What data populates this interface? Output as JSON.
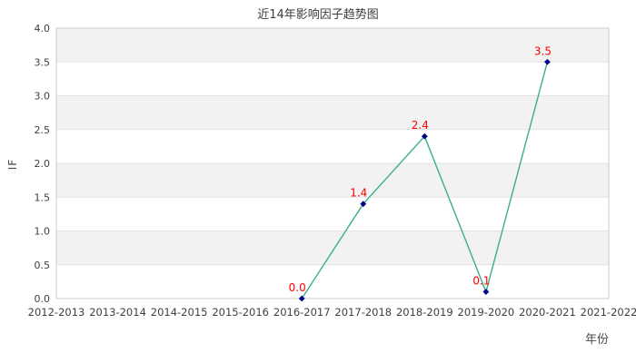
{
  "chart_data": {
    "type": "line",
    "title": "近14年影响因子趋势图",
    "xlabel": "年份",
    "ylabel": "IF",
    "categories": [
      "2012-2013",
      "2013-2014",
      "2014-2015",
      "2015-2016",
      "2016-2017",
      "2017-2018",
      "2018-2019",
      "2019-2020",
      "2020-2021",
      "2021-2022"
    ],
    "series": [
      {
        "name": "IF",
        "values": [
          null,
          null,
          null,
          null,
          0.0,
          1.4,
          2.4,
          0.1,
          3.5,
          null
        ]
      }
    ],
    "point_labels": [
      "0.0",
      "1.4",
      "2.4",
      "0.1",
      "3.5"
    ],
    "ylim": [
      0,
      4
    ],
    "yticks": [
      "0.0",
      "0.5",
      "1.0",
      "1.5",
      "2.0",
      "2.5",
      "3.0",
      "3.5",
      "4.0"
    ],
    "grid": "horizontal-bands-alternating",
    "legend": "none",
    "colors": {
      "line": "#3aae8e",
      "marker": "#00008b",
      "value_label": "#ff0000",
      "band": "#f2f2f2",
      "gridline": "#e2e2e2",
      "plot_border": "#cccccc",
      "text": "#404040",
      "background": "#ffffff"
    }
  }
}
